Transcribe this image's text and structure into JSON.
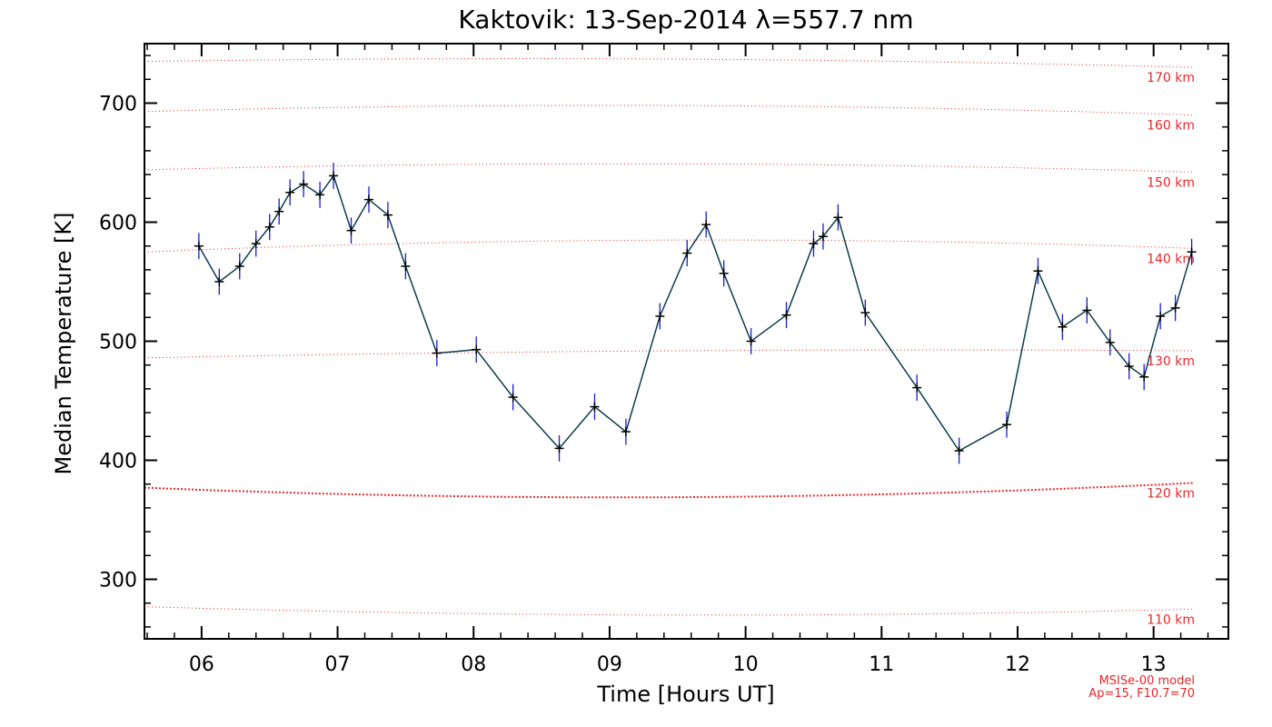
{
  "chart_data": {
    "type": "scatter",
    "title": "Kaktovik: 13-Sep-2014 λ=557.7 nm",
    "xlabel": "Time [Hours UT]",
    "ylabel": "Median Temperature [K]",
    "xlim": [
      5.58,
      13.55
    ],
    "ylim": [
      250,
      750
    ],
    "x_ticks": [
      6,
      7,
      8,
      9,
      10,
      11,
      12,
      13
    ],
    "x_tick_labels": [
      "06",
      "07",
      "08",
      "09",
      "10",
      "11",
      "12",
      "13"
    ],
    "y_ticks": [
      300,
      400,
      500,
      600,
      700
    ],
    "y_tick_labels": [
      "300",
      "400",
      "500",
      "600",
      "700"
    ],
    "grid": false,
    "series": [
      {
        "color": "#0b3d4a",
        "marker_color": "#000000",
        "errorbar_color": "#1b1bd6",
        "error": 11,
        "points": [
          {
            "x": 5.98,
            "y": 580
          },
          {
            "x": 6.13,
            "y": 550
          },
          {
            "x": 6.28,
            "y": 563
          },
          {
            "x": 6.4,
            "y": 582
          },
          {
            "x": 6.5,
            "y": 596
          },
          {
            "x": 6.57,
            "y": 609
          },
          {
            "x": 6.65,
            "y": 625
          },
          {
            "x": 6.75,
            "y": 632
          },
          {
            "x": 6.87,
            "y": 623
          },
          {
            "x": 6.97,
            "y": 639
          },
          {
            "x": 7.1,
            "y": 593
          },
          {
            "x": 7.23,
            "y": 619
          },
          {
            "x": 7.37,
            "y": 606
          },
          {
            "x": 7.5,
            "y": 563
          },
          {
            "x": 7.73,
            "y": 490
          },
          {
            "x": 8.02,
            "y": 493
          },
          {
            "x": 8.29,
            "y": 453
          },
          {
            "x": 8.63,
            "y": 410
          },
          {
            "x": 8.89,
            "y": 445
          },
          {
            "x": 9.12,
            "y": 424
          },
          {
            "x": 9.37,
            "y": 521
          },
          {
            "x": 9.57,
            "y": 574
          },
          {
            "x": 9.71,
            "y": 598
          },
          {
            "x": 9.84,
            "y": 557
          },
          {
            "x": 10.04,
            "y": 500
          },
          {
            "x": 10.3,
            "y": 522
          },
          {
            "x": 10.5,
            "y": 582
          },
          {
            "x": 10.57,
            "y": 588
          },
          {
            "x": 10.68,
            "y": 604
          },
          {
            "x": 10.88,
            "y": 524
          },
          {
            "x": 11.26,
            "y": 461
          },
          {
            "x": 11.57,
            "y": 408
          },
          {
            "x": 11.92,
            "y": 430
          },
          {
            "x": 12.15,
            "y": 559
          },
          {
            "x": 12.33,
            "y": 512
          },
          {
            "x": 12.51,
            "y": 526
          },
          {
            "x": 12.68,
            "y": 499
          },
          {
            "x": 12.82,
            "y": 479
          },
          {
            "x": 12.93,
            "y": 470
          },
          {
            "x": 13.05,
            "y": 521
          },
          {
            "x": 13.16,
            "y": 528
          },
          {
            "x": 13.28,
            "y": 575
          }
        ]
      }
    ],
    "msis_color": "#e8282a",
    "msis_curves": [
      {
        "label": "110 km",
        "x": [
          5.58,
          9.5,
          13.3
        ],
        "y": [
          277,
          270,
          275
        ],
        "bold": false
      },
      {
        "label": "120 km",
        "x": [
          5.58,
          9.5,
          13.3
        ],
        "y": [
          377,
          369,
          381
        ],
        "bold": true
      },
      {
        "label": "130 km",
        "x": [
          5.58,
          9.5,
          13.3
        ],
        "y": [
          486,
          492,
          492
        ],
        "bold": false
      },
      {
        "label": "140 km",
        "x": [
          5.58,
          9.5,
          13.3
        ],
        "y": [
          575,
          585,
          578
        ],
        "bold": false
      },
      {
        "label": "150 km",
        "x": [
          5.58,
          9.5,
          13.3
        ],
        "y": [
          644,
          649,
          642
        ],
        "bold": false
      },
      {
        "label": "160 km",
        "x": [
          5.58,
          9.5,
          13.3
        ],
        "y": [
          693,
          698,
          690
        ],
        "bold": false
      },
      {
        "label": "170 km",
        "x": [
          5.58,
          9.5,
          13.3
        ],
        "y": [
          735,
          737,
          730
        ],
        "bold": false
      }
    ],
    "notes": [
      "MSISe-00 model",
      "Ap=15, F10.7=70"
    ]
  }
}
